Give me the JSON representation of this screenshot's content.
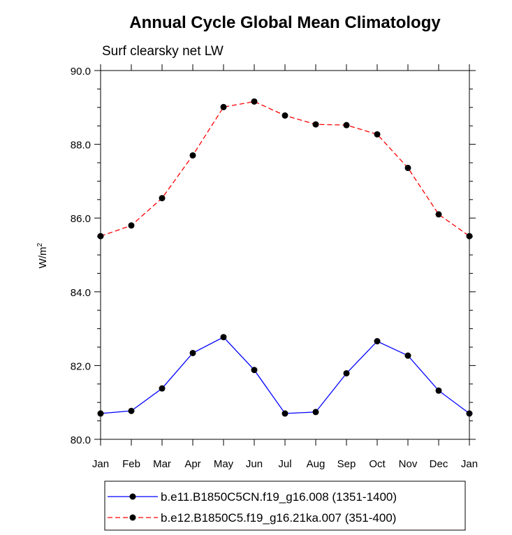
{
  "chart_data": {
    "type": "line",
    "title": "Annual Cycle Global Mean Climatology",
    "subtitle": "Surf clearsky net LW",
    "xlabel": "",
    "ylabel": "W/m",
    "ylabel_superscript": "2",
    "ylim": [
      80.0,
      90.0
    ],
    "yticks": [
      "80.0",
      "82.0",
      "84.0",
      "86.0",
      "88.0",
      "90.0"
    ],
    "ytick_values": [
      80,
      82,
      84,
      86,
      88,
      90
    ],
    "categories": [
      "Jan",
      "Feb",
      "Mar",
      "Apr",
      "May",
      "Jun",
      "Jul",
      "Aug",
      "Sep",
      "Oct",
      "Nov",
      "Dec",
      "Jan"
    ],
    "grid": false,
    "legend_position": "bottom",
    "series": [
      {
        "name": "b.e11.B1850C5CN.f19_g16.008 (1351-1400)",
        "color": "#0000ff",
        "dash": "solid",
        "values": [
          80.7,
          80.77,
          81.38,
          82.34,
          82.77,
          81.88,
          80.7,
          80.74,
          81.79,
          82.66,
          82.27,
          81.32,
          80.7
        ]
      },
      {
        "name": "b.e12.B1850C5.f19_g16.21ka.007 (351-400)",
        "color": "#ff0000",
        "dash": "dashed",
        "values": [
          85.51,
          85.8,
          86.54,
          87.7,
          89.01,
          89.16,
          88.78,
          88.54,
          88.52,
          88.27,
          87.36,
          86.1,
          85.51
        ]
      }
    ]
  }
}
